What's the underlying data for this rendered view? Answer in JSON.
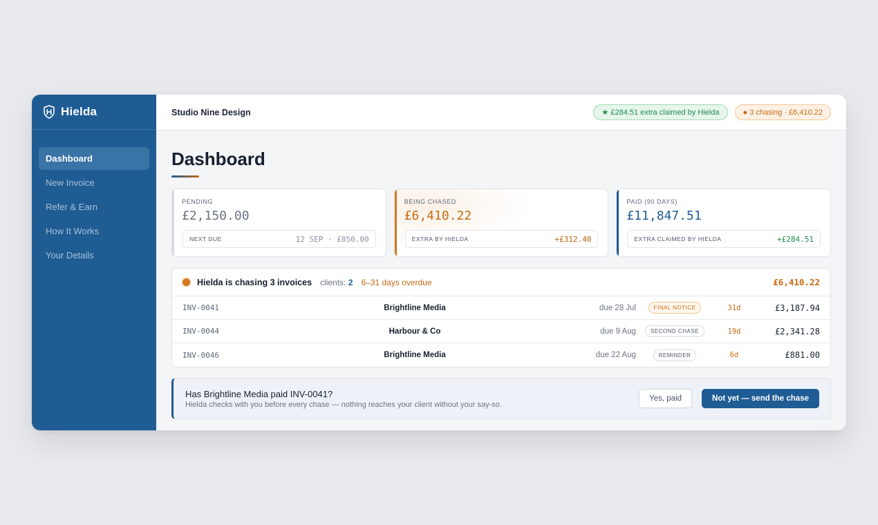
{
  "brand": {
    "name": "Hielda",
    "logo_icon": "shield-h-icon"
  },
  "sidebar": {
    "items": [
      {
        "label": "Dashboard",
        "active": true
      },
      {
        "label": "New Invoice"
      },
      {
        "label": "Refer & Earn"
      },
      {
        "label": "How It Works"
      },
      {
        "label": "Your Details"
      }
    ]
  },
  "header": {
    "workspace": "Studio Nine Design",
    "pills": {
      "claimed": "★ £284.51 extra claimed by Hielda",
      "chasing": "● 3 chasing · £6,410.22"
    }
  },
  "page": {
    "title": "Dashboard"
  },
  "cards": {
    "pending": {
      "label": "PENDING",
      "value": "£2,150.00",
      "sub_label": "NEXT DUE",
      "sub_value": "12 SEP · £850.00"
    },
    "chased": {
      "label": "BEING CHASED",
      "value": "£6,410.22",
      "sub_label": "EXTRA BY HIELDA",
      "sub_value": "+£312.40"
    },
    "paid": {
      "label": "PAID (90 DAYS)",
      "value": "£11,847.51",
      "sub_label": "EXTRA CLAIMED BY HIELDA",
      "sub_value": "+£284.51"
    }
  },
  "chase": {
    "title": "Hielda is chasing 3 invoices",
    "clients_label": "clients:",
    "clients_count": "2",
    "overdue": "6–31 days overdue",
    "total": "£6,410.22",
    "rows": [
      {
        "inv": "INV-0041",
        "client": "Brightline Media",
        "due": "due 28 Jul",
        "stage": "FINAL NOTICE",
        "days": "31d",
        "amount": "£3,187.94"
      },
      {
        "inv": "INV-0044",
        "client": "Harbour & Co",
        "due": "due 9 Aug",
        "stage": "SECOND CHASE",
        "days": "19d",
        "amount": "£2,341.28"
      },
      {
        "inv": "INV-0046",
        "client": "Brightline Media",
        "due": "due 22 Aug",
        "stage": "REMINDER",
        "days": "6d",
        "amount": "£881.00"
      }
    ]
  },
  "confirm": {
    "question": "Has Brightline Media paid INV-0041?",
    "subtext": "Hielda checks with you before every chase — nothing reaches your client without your say-so.",
    "yes_label": "Yes, paid",
    "no_label": "Not yet — send the chase"
  },
  "colors": {
    "brand": "#1f5c94",
    "accent": "#c76a12",
    "success": "#1f8a4c"
  }
}
